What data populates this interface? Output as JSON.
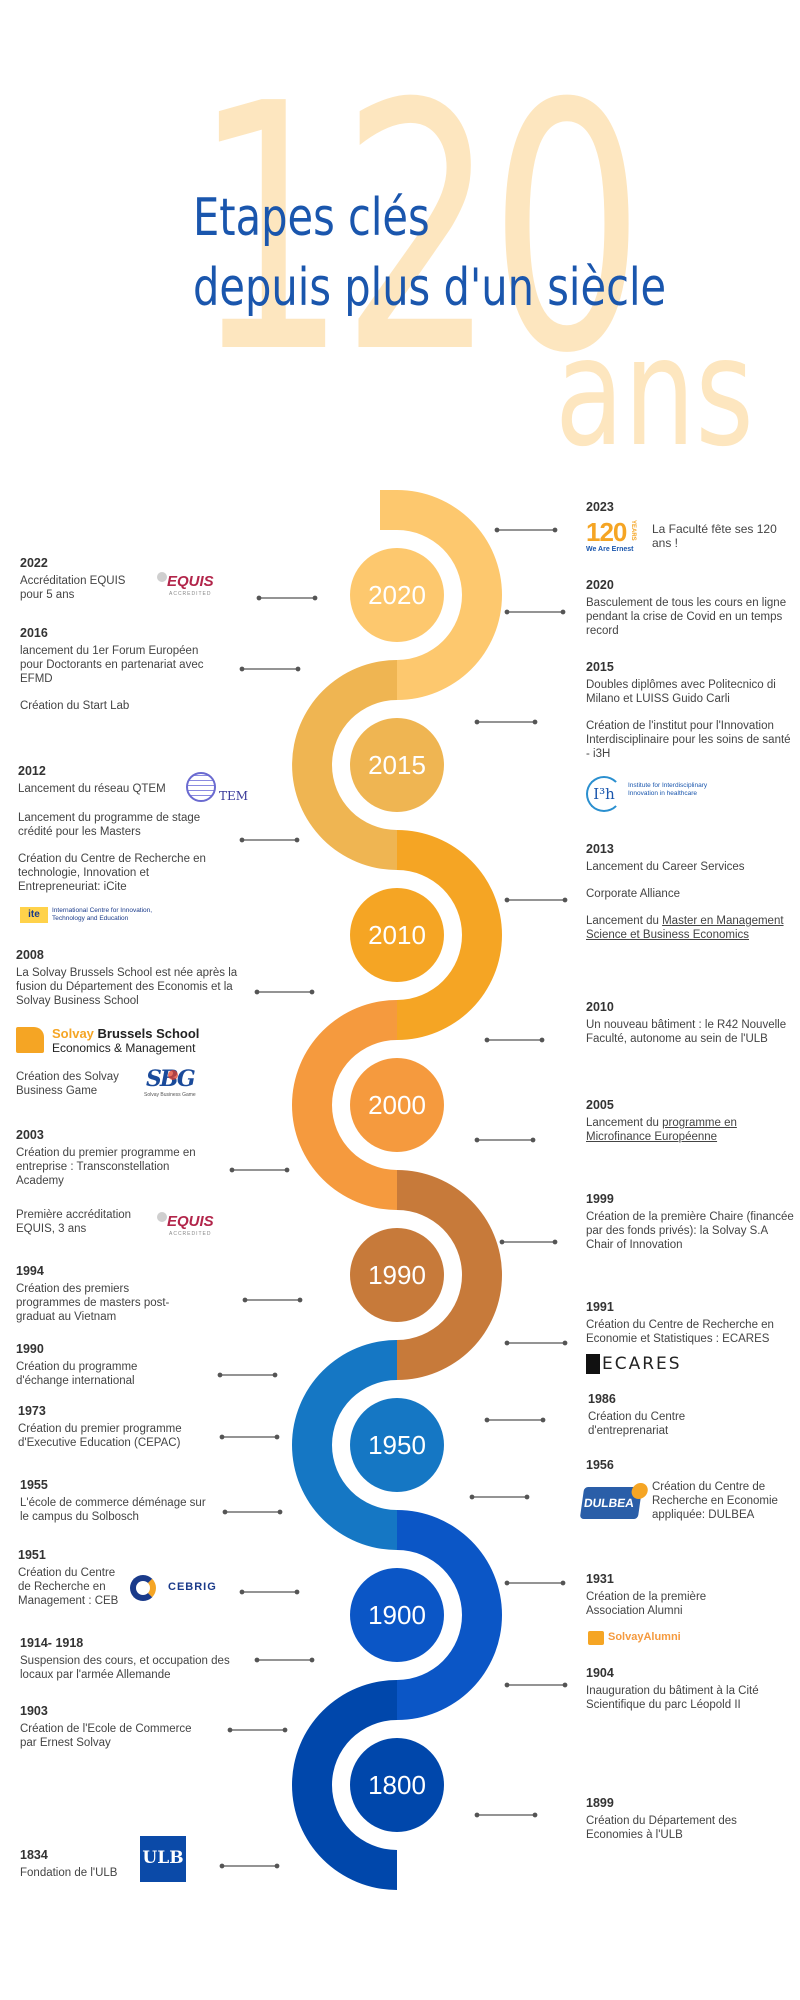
{
  "header": {
    "bg_number": "120",
    "bg_word": "ans",
    "title_line1": "Etapes clés",
    "title_line2": "depuis plus d'un siècle"
  },
  "colors": {
    "title": "#1a56ad",
    "bg_text": "#fde6bf",
    "seg_2020": "#fdc86e",
    "seg_2015": "#efb552",
    "seg_2010": "#f5a524",
    "seg_2000": "#f59a3e",
    "seg_1990": "#c77a3a",
    "seg_1950": "#1577c4",
    "seg_1900": "#0b56c6",
    "seg_1800": "#0047ab"
  },
  "decades": [
    "2020",
    "2015",
    "2010",
    "2000",
    "1990",
    "1950",
    "1900",
    "1800"
  ],
  "left_events": {
    "e2022": {
      "year": "2022",
      "texts": [
        "Accréditation EQUIS pour 5 ans"
      ]
    },
    "e2016": {
      "year": "2016",
      "texts": [
        "lancement du 1er Forum Européen pour Doctorants en partenariat avec EFMD",
        "Création du Start Lab"
      ]
    },
    "e2012": {
      "year": "2012",
      "texts": [
        "Lancement du réseau QTEM",
        "Lancement du programme de stage crédité pour les Masters",
        "Création du Centre de Recherche en technologie, Innovation et Entrepreneuriat: iCite"
      ]
    },
    "e2008": {
      "year": "2008",
      "texts": [
        "La Solvay Brussels School est née après la fusion du Département des Economis et la Solvay Business School",
        "Création des Solvay Business Game"
      ]
    },
    "e2003": {
      "year": "2003",
      "texts": [
        "Création du premier programme en entreprise : Transconstellation Academy",
        "Première accréditation EQUIS, 3 ans"
      ]
    },
    "e1994": {
      "year": "1994",
      "texts": [
        "Création des premiers programmes de masters post-graduat au Vietnam"
      ]
    },
    "e1990": {
      "year": "1990",
      "texts": [
        "Création du programme d'échange international"
      ]
    },
    "e1973": {
      "year": "1973",
      "texts": [
        "Création du premier programme d'Executive Education (CEPAC)"
      ]
    },
    "e1955": {
      "year": "1955",
      "texts": [
        "L'école de commerce déménage sur le campus du Solbosch"
      ]
    },
    "e1951": {
      "year": "1951",
      "texts": [
        "Création du Centre de Recherche en Management : CEB"
      ]
    },
    "e1914": {
      "year": "1914- 1918",
      "texts": [
        "Suspension des cours, et occupation des locaux par l'armée Allemande"
      ]
    },
    "e1903": {
      "year": "1903",
      "texts": [
        "Création de l'Ecole de Commerce par Ernest Solvay"
      ]
    },
    "e1834": {
      "year": "1834",
      "texts": [
        "Fondation de l'ULB"
      ]
    }
  },
  "right_events": {
    "e2023": {
      "year": "2023",
      "texts": [
        "La Faculté fête ses 120 ans !"
      ]
    },
    "e2020": {
      "year": "2020",
      "texts": [
        "Basculement de tous les cours en ligne pendant la crise de Covid en un temps record"
      ]
    },
    "e2015": {
      "year": "2015",
      "texts": [
        "Doubles diplômes avec Politecnico di Milano et LUISS Guido Carli",
        "Création de l'institut pour l'Innovation Interdisciplinaire pour les soins de santé - i3H"
      ]
    },
    "e2013": {
      "year": "2013",
      "texts": [
        "Lancement du Career Services",
        "Corporate Alliance",
        "Lancement du ",
        "Master en Management Science et Business Economics"
      ]
    },
    "e2010": {
      "year": "2010",
      "texts": [
        "Un nouveau bâtiment : le R42 Nouvelle Faculté, autonome au sein de l'ULB"
      ]
    },
    "e2005": {
      "year": "2005",
      "texts": [
        "Lancement du ",
        "programme en Microfinance Européenne"
      ]
    },
    "e1999": {
      "year": "1999",
      "texts": [
        "Création de la première Chaire (financée par des fonds privés): la Solvay S.A Chair of Innovation"
      ]
    },
    "e1991": {
      "year": "1991",
      "texts": [
        "Création du Centre de Recherche en Economie et Statistiques : ECARES"
      ]
    },
    "e1986": {
      "year": "1986",
      "texts": [
        "Création du Centre d'entreprenariat"
      ]
    },
    "e1956": {
      "year": "1956",
      "texts": [
        "Création du Centre de Recherche en Economie appliquée: DULBEA"
      ]
    },
    "e1931": {
      "year": "1931",
      "texts": [
        "Création de la première Association Alumni"
      ]
    },
    "e1904": {
      "year": "1904",
      "texts": [
        "Inauguration du bâtiment à la Cité Scientifique du parc Léopold II"
      ]
    },
    "e1899": {
      "year": "1899",
      "texts": [
        "Création du Département des Economies à l'ULB"
      ]
    }
  },
  "logos": {
    "equis": "EQUIS",
    "equis_sub": "ACCREDITED",
    "qtem": "TEM",
    "icite_mark": "ite",
    "icite_text": "International Centre for Innovation, Technology and Education",
    "solvay_1": "Solvay",
    "solvay_2": "Brussels School",
    "solvay_3": "Economics & Management",
    "sbg": "SBG",
    "sbg_sub": "Solvay Business Game",
    "i3h_mark": "I³h",
    "i3h_text": "Institute for Interdisciplinary Innovation in healthcare",
    "ecares": "ECARES",
    "dulbea": "DULBEA",
    "cebrig": "CEBRIG",
    "alumni": "SolvayAlumni",
    "ulb": "ULB",
    "we_are_ernest": "We Are Ernest",
    "years": "YEARS"
  }
}
